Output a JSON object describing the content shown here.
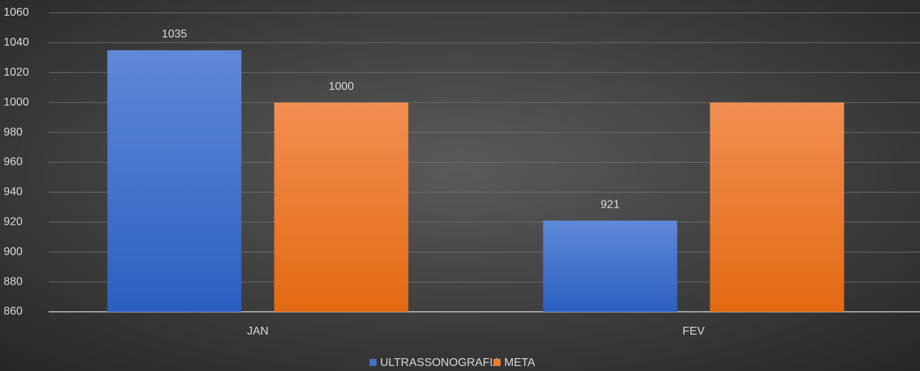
{
  "chart_data": {
    "type": "bar",
    "categories": [
      "JAN",
      "FEV"
    ],
    "series": [
      {
        "name": "ULTRASSONOGRAFIA",
        "color": "#4472c4",
        "values": [
          1035,
          921
        ],
        "value_labels": [
          "1035",
          "921"
        ]
      },
      {
        "name": "META",
        "color": "#ed7d31",
        "values": [
          1000,
          1000
        ],
        "value_labels": [
          "1000",
          null
        ]
      }
    ],
    "ylim": [
      860,
      1060
    ],
    "yticks": [
      860,
      880,
      900,
      920,
      940,
      960,
      980,
      1000,
      1020,
      1040,
      1060
    ],
    "grid": true,
    "legend": "bottom"
  }
}
